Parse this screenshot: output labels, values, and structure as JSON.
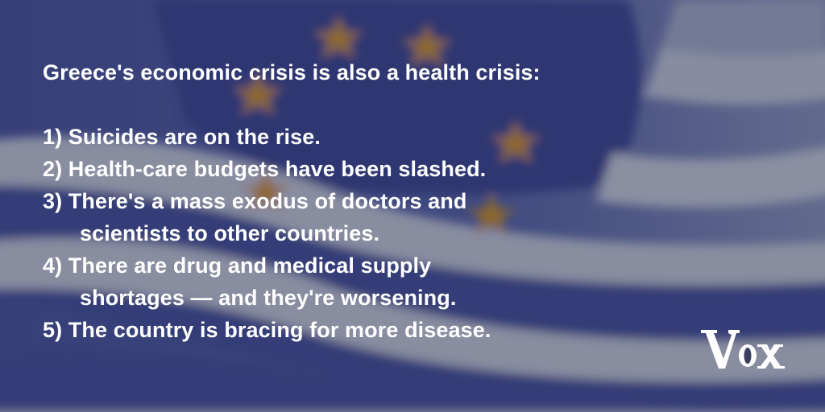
{
  "headline": "Greece's economic crisis is also a health crisis:",
  "items": [
    {
      "lines": [
        "1) Suicides are on the rise."
      ]
    },
    {
      "lines": [
        "2) Health-care budgets have been slashed."
      ]
    },
    {
      "lines": [
        "3) There's a mass exodus of doctors and",
        "scientists to other countries."
      ]
    },
    {
      "lines": [
        "4) There are drug and medical supply",
        "shortages — and they're worsening."
      ]
    },
    {
      "lines": [
        "5) The country is bracing for more disease."
      ]
    }
  ],
  "logo": {
    "text": "Vox"
  },
  "colors": {
    "flag_blue": "#3f4c99",
    "flag_white": "#d8dde8",
    "overlay": "#1f2444",
    "star": "#e6a01e",
    "text": "#ffffff"
  }
}
